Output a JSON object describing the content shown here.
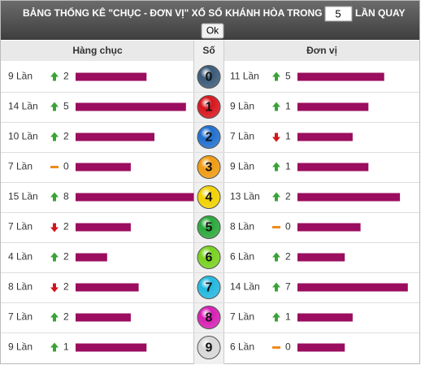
{
  "header": {
    "title": "BẢNG THỐNG KÊ \"CHỤC - ĐƠN VỊ\" XỔ SỐ KHÁNH HÒA TRONG",
    "input_value": "5",
    "suffix": "LẦN QUAY",
    "button": "Ok"
  },
  "table": {
    "columns": [
      "Hàng chục",
      "Số",
      "Đơn vị"
    ],
    "bar_color": "#9b0d5e",
    "rows": [
      {
        "digit": "0",
        "ball_color": "#3a5a78",
        "tens": {
          "value": 9,
          "label": "9 Lần"
        },
        "tens_trend": "up",
        "tens_change": 2,
        "units": {
          "value": 11,
          "label": "11 Lần"
        },
        "units_trend": "up",
        "units_change": 5
      },
      {
        "digit": "1",
        "ball_color": "#d8141c",
        "tens": {
          "value": 14,
          "label": "14 Lần"
        },
        "tens_trend": "up",
        "tens_change": 5,
        "units": {
          "value": 9,
          "label": "9 Lần"
        },
        "units_trend": "up",
        "units_change": 1
      },
      {
        "digit": "2",
        "ball_color": "#1f6fd0",
        "tens": {
          "value": 10,
          "label": "10 Lần"
        },
        "tens_trend": "up",
        "tens_change": 2,
        "units": {
          "value": 7,
          "label": "7 Lần"
        },
        "units_trend": "down",
        "units_change": 1
      },
      {
        "digit": "3",
        "ball_color": "#f09a10",
        "tens": {
          "value": 7,
          "label": "7 Lần"
        },
        "tens_trend": "flat",
        "tens_change": 0,
        "units": {
          "value": 9,
          "label": "9 Lần"
        },
        "units_trend": "up",
        "units_change": 1
      },
      {
        "digit": "4",
        "ball_color": "#f2d200",
        "tens": {
          "value": 15,
          "label": "15 Lần"
        },
        "tens_trend": "up",
        "tens_change": 8,
        "units": {
          "value": 13,
          "label": "13 Lần"
        },
        "units_trend": "up",
        "units_change": 2
      },
      {
        "digit": "5",
        "ball_color": "#2aa83a",
        "tens": {
          "value": 7,
          "label": "7 Lần"
        },
        "tens_trend": "down",
        "tens_change": 2,
        "units": {
          "value": 8,
          "label": "8 Lần"
        },
        "units_trend": "flat",
        "units_change": 0
      },
      {
        "digit": "6",
        "ball_color": "#78d21e",
        "tens": {
          "value": 4,
          "label": "4 Lần"
        },
        "tens_trend": "up",
        "tens_change": 2,
        "units": {
          "value": 6,
          "label": "6 Lần"
        },
        "units_trend": "up",
        "units_change": 2
      },
      {
        "digit": "7",
        "ball_color": "#22b8e0",
        "tens": {
          "value": 8,
          "label": "8 Lần"
        },
        "tens_trend": "down",
        "tens_change": 2,
        "units": {
          "value": 14,
          "label": "14 Lần"
        },
        "units_trend": "up",
        "units_change": 7
      },
      {
        "digit": "8",
        "ball_color": "#d81eb4",
        "tens": {
          "value": 7,
          "label": "7 Lần"
        },
        "tens_trend": "up",
        "tens_change": 2,
        "units": {
          "value": 7,
          "label": "7 Lần"
        },
        "units_trend": "up",
        "units_change": 1
      },
      {
        "digit": "9",
        "ball_color": "#d8d8d8",
        "tens": {
          "value": 9,
          "label": "9 Lần"
        },
        "tens_trend": "up",
        "tens_change": 1,
        "units": {
          "value": 6,
          "label": "6 Lần"
        },
        "units_trend": "flat",
        "units_change": 0
      }
    ]
  }
}
